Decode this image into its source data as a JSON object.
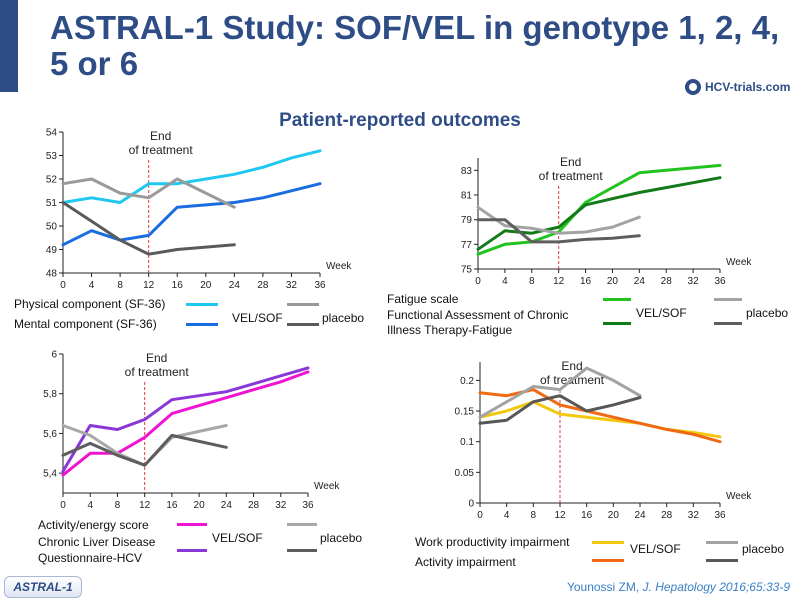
{
  "title": "ASTRAL-1 Study: SOF/VEL in genotype 1, 2, 4, 5 or 6",
  "logo_text": "HCV-trials.com",
  "subtitle": "Patient-reported outcomes",
  "footer_tag": "ASTRAL-1",
  "citation": {
    "authors": "Younossi ZM, ",
    "journal": "J. Hepatology 2016;65:33-9"
  },
  "colors": {
    "title": "#2e4d86",
    "eot_line": "#e33b3b",
    "citation": "#3a7fc6"
  },
  "chart_data": [
    {
      "type": "line",
      "id": "sf36",
      "x": [
        0,
        4,
        8,
        12,
        16,
        20,
        24,
        28,
        32,
        36
      ],
      "xlim": [
        0,
        36
      ],
      "ylim": [
        48,
        54
      ],
      "yticks": [
        "48",
        "49",
        "50",
        "51",
        "52",
        "53",
        "54"
      ],
      "xlabel": "Week",
      "annotation": [
        "End",
        "of treatment"
      ],
      "eot_x": 12,
      "legend_labels": [
        "Physical component (SF-36)",
        "Mental component (SF-36)"
      ],
      "group_labels": {
        "active": "VEL/SOF",
        "control": "placebo"
      },
      "series": [
        {
          "key": "phys-velsof",
          "color": "#1ec8f0",
          "x": [
            0,
            4,
            8,
            12,
            16,
            20,
            24,
            28,
            32,
            36
          ],
          "y": [
            51,
            51.2,
            51,
            51.8,
            51.8,
            52,
            52.2,
            52.5,
            52.9,
            53.2
          ]
        },
        {
          "key": "ment-velsof",
          "color": "#1a6de0",
          "x": [
            0,
            4,
            8,
            12,
            16,
            20,
            24,
            28,
            32,
            36
          ],
          "y": [
            49.2,
            49.8,
            49.4,
            49.6,
            50.8,
            50.9,
            51,
            51.2,
            51.5,
            51.8
          ]
        },
        {
          "key": "phys-placebo",
          "color": "#9a9a9a",
          "x": [
            0,
            4,
            8,
            12,
            16,
            20,
            24
          ],
          "y": [
            51.8,
            52.0,
            51.4,
            51.2,
            52,
            51.4,
            50.8
          ]
        },
        {
          "key": "ment-placebo",
          "color": "#5a5a5a",
          "x": [
            0,
            4,
            8,
            12,
            16,
            20,
            24
          ],
          "y": [
            51,
            50.2,
            49.4,
            48.8,
            49,
            49.1,
            49.2
          ]
        }
      ]
    },
    {
      "type": "line",
      "id": "facit",
      "x": [
        0,
        4,
        8,
        12,
        16,
        20,
        24,
        28,
        32,
        36
      ],
      "xlim": [
        0,
        36
      ],
      "ylim": [
        75,
        84
      ],
      "yticks": [
        "75",
        "77",
        "79",
        "81",
        "83"
      ],
      "ytick_values": [
        75,
        77,
        79,
        81,
        83
      ],
      "xlabel": "Week",
      "annotation": [
        "End",
        "of treatment"
      ],
      "eot_x": 12,
      "legend_labels": [
        "Fatigue scale",
        "Functional Assessment of Chronic",
        "Illness Therapy-Fatigue"
      ],
      "group_labels": {
        "active": "VEL/SOF",
        "control": "placebo"
      },
      "series": [
        {
          "key": "fat-velsof",
          "color": "#22c31e",
          "x": [
            0,
            4,
            8,
            12,
            16,
            20,
            24,
            28,
            32,
            36
          ],
          "y": [
            76.2,
            77,
            77.2,
            78,
            80.4,
            81.6,
            82.8,
            83,
            83.2,
            83.4
          ]
        },
        {
          "key": "facit-velsof",
          "color": "#127a18",
          "x": [
            0,
            4,
            8,
            12,
            16,
            20,
            24,
            28,
            32,
            36
          ],
          "y": [
            76.6,
            78.1,
            77.9,
            78.4,
            80.2,
            80.7,
            81.2,
            81.6,
            82,
            82.4
          ]
        },
        {
          "key": "fat-placebo",
          "color": "#a3a3a3",
          "x": [
            0,
            4,
            8,
            12,
            16,
            20,
            24
          ],
          "y": [
            80,
            78.5,
            78.3,
            77.9,
            78,
            78.4,
            79.2
          ]
        },
        {
          "key": "facit-placebo",
          "color": "#5e5e5e",
          "x": [
            0,
            4,
            8,
            12,
            16,
            20,
            24
          ],
          "y": [
            79,
            79,
            77.2,
            77.2,
            77.4,
            77.5,
            77.7
          ]
        }
      ]
    },
    {
      "type": "line",
      "id": "cld",
      "x": [
        0,
        4,
        8,
        12,
        16,
        20,
        24,
        28,
        32,
        36
      ],
      "xlim": [
        0,
        36
      ],
      "ylim": [
        5.3,
        6.0
      ],
      "yticks": [
        "5,4",
        "5,6",
        "5,8",
        "6"
      ],
      "ytick_values": [
        5.4,
        5.6,
        5.8,
        6.0
      ],
      "xlabel": "Week",
      "annotation": [
        "End",
        "of treatment"
      ],
      "eot_x": 12,
      "legend_labels": [
        "Activity/energy score",
        "Chronic Liver Disease",
        "Questionnaire-HCV"
      ],
      "group_labels": {
        "active": "VEL/SOF",
        "control": "placebo"
      },
      "series": [
        {
          "key": "act-velsof",
          "color": "#f014d2",
          "x": [
            0,
            4,
            8,
            12,
            16,
            20,
            24,
            28,
            32,
            36
          ],
          "y": [
            5.39,
            5.5,
            5.5,
            5.58,
            5.7,
            5.74,
            5.78,
            5.82,
            5.86,
            5.91
          ]
        },
        {
          "key": "cld-velsof",
          "color": "#8a37d8",
          "x": [
            0,
            4,
            8,
            12,
            16,
            20,
            24,
            28,
            32,
            36
          ],
          "y": [
            5.41,
            5.64,
            5.62,
            5.67,
            5.77,
            5.79,
            5.81,
            5.85,
            5.89,
            5.93
          ]
        },
        {
          "key": "act-placebo",
          "color": "#a8a8a8",
          "x": [
            0,
            4,
            8,
            12,
            16,
            20,
            24
          ],
          "y": [
            5.64,
            5.59,
            5.5,
            5.44,
            5.58,
            5.61,
            5.64
          ]
        },
        {
          "key": "cld-placebo",
          "color": "#5d5d5d",
          "x": [
            0,
            4,
            8,
            12,
            16,
            20,
            24
          ],
          "y": [
            5.49,
            5.55,
            5.49,
            5.44,
            5.59,
            5.56,
            5.53
          ]
        }
      ]
    },
    {
      "type": "line",
      "id": "wpai",
      "x": [
        0,
        4,
        8,
        12,
        16,
        20,
        24,
        28,
        32,
        36
      ],
      "xlim": [
        0,
        36
      ],
      "ylim": [
        0,
        0.23
      ],
      "yticks": [
        "0",
        "0.05",
        "0.1",
        "0.15",
        "0.2"
      ],
      "ytick_values": [
        0,
        0.05,
        0.1,
        0.15,
        0.2
      ],
      "xlabel": "Week",
      "annotation": [
        "End",
        "of treatment"
      ],
      "eot_x": 12,
      "legend_labels": [
        "Work productivity impairment",
        "Activity impairment"
      ],
      "group_labels": {
        "active": "VEL/SOF",
        "control": "placebo"
      },
      "series": [
        {
          "key": "work-velsof",
          "color": "#f2c80f",
          "x": [
            0,
            4,
            8,
            12,
            16,
            20,
            24,
            28,
            32,
            36
          ],
          "y": [
            0.14,
            0.15,
            0.165,
            0.145,
            0.14,
            0.135,
            0.13,
            0.12,
            0.115,
            0.108
          ]
        },
        {
          "key": "act-velsof",
          "color": "#f06a14",
          "x": [
            0,
            4,
            8,
            12,
            16,
            20,
            24,
            28,
            32,
            36
          ],
          "y": [
            0.18,
            0.175,
            0.185,
            0.16,
            0.15,
            0.14,
            0.13,
            0.12,
            0.112,
            0.1
          ]
        },
        {
          "key": "work-placebo",
          "color": "#a3a3a3",
          "x": [
            0,
            4,
            8,
            12,
            16,
            20,
            24
          ],
          "y": [
            0.14,
            0.165,
            0.19,
            0.185,
            0.22,
            0.2,
            0.175
          ]
        },
        {
          "key": "act-placebo",
          "color": "#575757",
          "x": [
            0,
            4,
            8,
            12,
            16,
            20,
            24
          ],
          "y": [
            0.13,
            0.135,
            0.165,
            0.175,
            0.15,
            0.16,
            0.172
          ]
        }
      ]
    }
  ]
}
